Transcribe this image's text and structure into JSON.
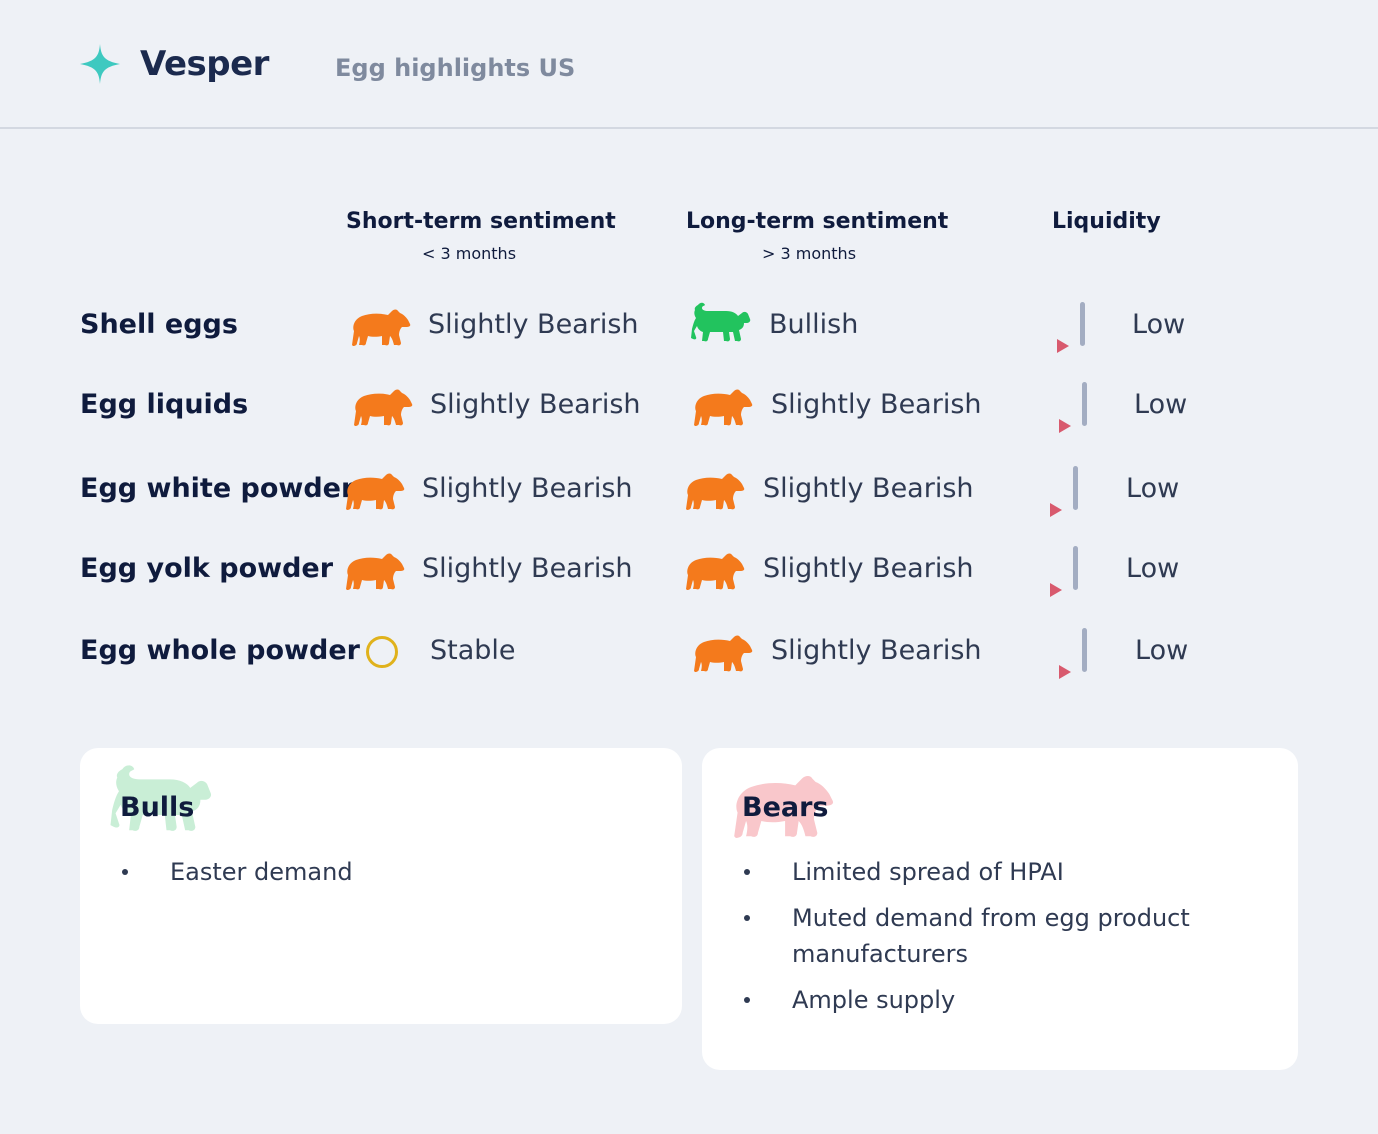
{
  "header": {
    "brand": "Vesper",
    "subtitle": "Egg highlights US",
    "logo_icon": "sparkle-star-icon",
    "logo_color": "#3ec9c0"
  },
  "columns": {
    "short_term": {
      "title": "Short-term sentiment",
      "sub": "< 3 months"
    },
    "long_term": {
      "title": "Long-term sentiment",
      "sub": "> 3 months"
    },
    "liquidity": {
      "title": "Liquidity"
    }
  },
  "rows": [
    {
      "label": "Shell eggs",
      "short": "Slightly Bearish",
      "long": "Bullish",
      "liquidity": "Low"
    },
    {
      "label": "Egg liquids",
      "short": "Slightly Bearish",
      "long": "Slightly Bearish",
      "liquidity": "Low"
    },
    {
      "label": "Egg white powder",
      "short": "Slightly Bearish",
      "long": "Slightly Bearish",
      "liquidity": "Low"
    },
    {
      "label": "Egg yolk powder",
      "short": "Slightly Bearish",
      "long": "Slightly Bearish",
      "liquidity": "Low"
    },
    {
      "label": "Egg whole powder",
      "short": "Stable",
      "long": "Slightly Bearish",
      "liquidity": "Low"
    }
  ],
  "icons": {
    "bearish": "bear-icon",
    "bullish": "bull-icon",
    "stable": "circle-icon",
    "liquidity": "liquidity-bar-icon"
  },
  "colors": {
    "bear": "#f47a1c",
    "bull": "#22c35e",
    "stable": "#e0b21c",
    "liquidity_bar": "#a3adc2",
    "liquidity_marker": "#d85a6e"
  },
  "bulls": {
    "title": "Bulls",
    "items": [
      "Easter demand"
    ]
  },
  "bears": {
    "title": "Bears",
    "items": [
      "Limited spread of HPAI",
      "Muted demand from egg product manufacturers",
      "Ample supply"
    ]
  }
}
